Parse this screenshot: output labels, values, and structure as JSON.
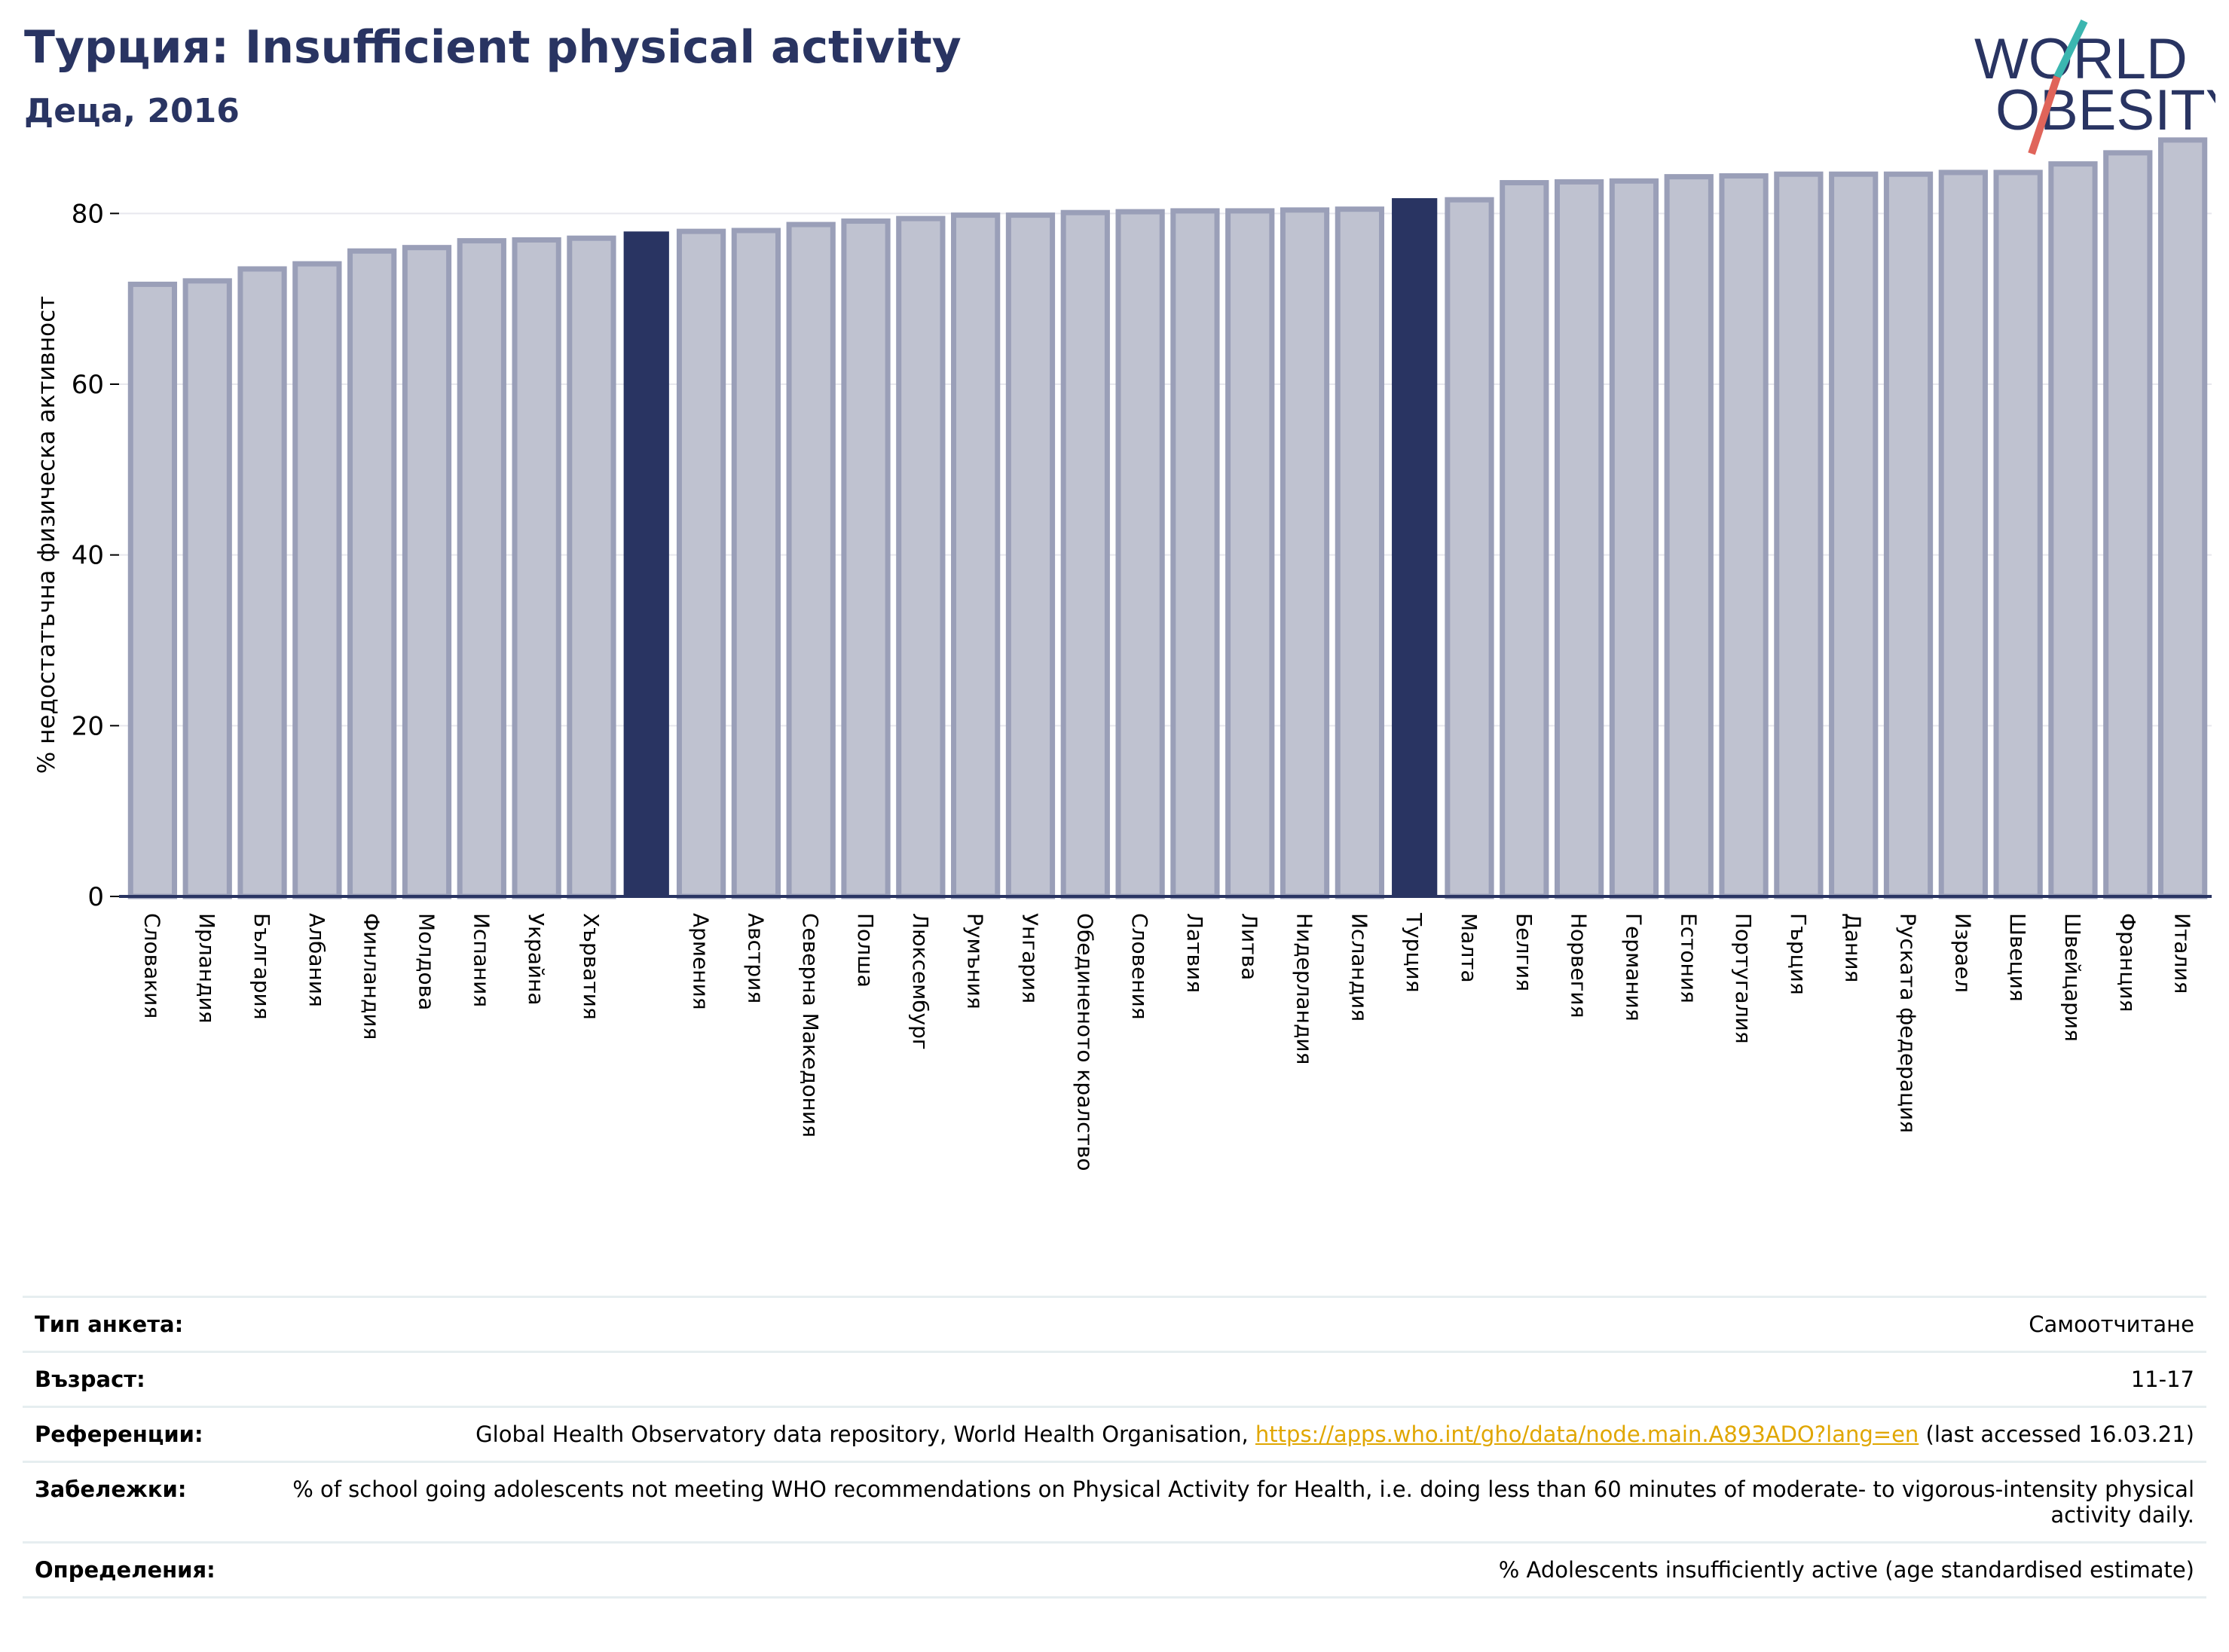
{
  "header": {
    "title": "Турция: Insufficient physical activity",
    "subtitle": "Деца, 2016"
  },
  "logo": {
    "line1": "WORLD",
    "line2": "OBESITY",
    "slash_colors": [
      "#3bb6b0",
      "#e0645a"
    ],
    "text_color": "#293462"
  },
  "colors": {
    "bar_default": "#bfc2d0",
    "bar_default_edge": "#9a9fb8",
    "bar_highlight": "#293462",
    "axis": "#293462",
    "grid": "#e8e8ee"
  },
  "chart_data": {
    "type": "bar",
    "ylabel": "% недостатъчна физическа активност",
    "ylim": [
      0,
      90
    ],
    "yticks": [
      0,
      20,
      40,
      60,
      80
    ],
    "grid": true,
    "categories": [
      "Словакия",
      "Ирландия",
      "България",
      "Албания",
      "Финландия",
      "Молдова",
      "Испания",
      "Украйна",
      "Хърватия",
      "",
      "Армения",
      "Австрия",
      "Северна Македония",
      "Полша",
      "Люксембург",
      "Румъния",
      "Унгария",
      "Обединеното кралство",
      "Словения",
      "Латвия",
      "Литва",
      "Нидерландия",
      "Исландия",
      "Турция",
      "Малта",
      "Белгия",
      "Норвегия",
      "Германия",
      "Естония",
      "Португалия",
      "Гърция",
      "Дания",
      "Руската федерация",
      "Израел",
      "Швеция",
      "Швейцария",
      "Франция",
      "Италия"
    ],
    "values": [
      71.7,
      72.1,
      73.5,
      74.1,
      75.6,
      76.0,
      76.8,
      76.9,
      77.1,
      77.8,
      77.9,
      78.0,
      78.7,
      79.1,
      79.4,
      79.8,
      79.8,
      80.1,
      80.2,
      80.3,
      80.3,
      80.4,
      80.5,
      81.7,
      81.6,
      83.6,
      83.7,
      83.8,
      84.3,
      84.4,
      84.6,
      84.6,
      84.6,
      84.8,
      84.8,
      85.8,
      87.1,
      88.6
    ],
    "highlight": [
      9,
      23
    ]
  },
  "table": {
    "rows": [
      {
        "label": "Тип анкета:",
        "value": "Самоотчитане"
      },
      {
        "label": "Възраст:",
        "value": "11-17"
      },
      {
        "label": "Референции:",
        "value_pre": "Global Health Observatory data repository, World Health Organisation, ",
        "link": "https://apps.who.int/gho/data/node.main.A893ADO?lang=en",
        "value_post": " (last accessed 16.03.21)"
      },
      {
        "label": "Забележки:",
        "value": "% of school going adolescents not meeting WHO recommendations on Physical Activity for Health, i.e. doing less than 60 minutes of moderate- to vigorous-intensity physical activity daily."
      },
      {
        "label": "Определения:",
        "value": "% Adolescents insufficiently active (age standardised estimate)"
      }
    ]
  }
}
